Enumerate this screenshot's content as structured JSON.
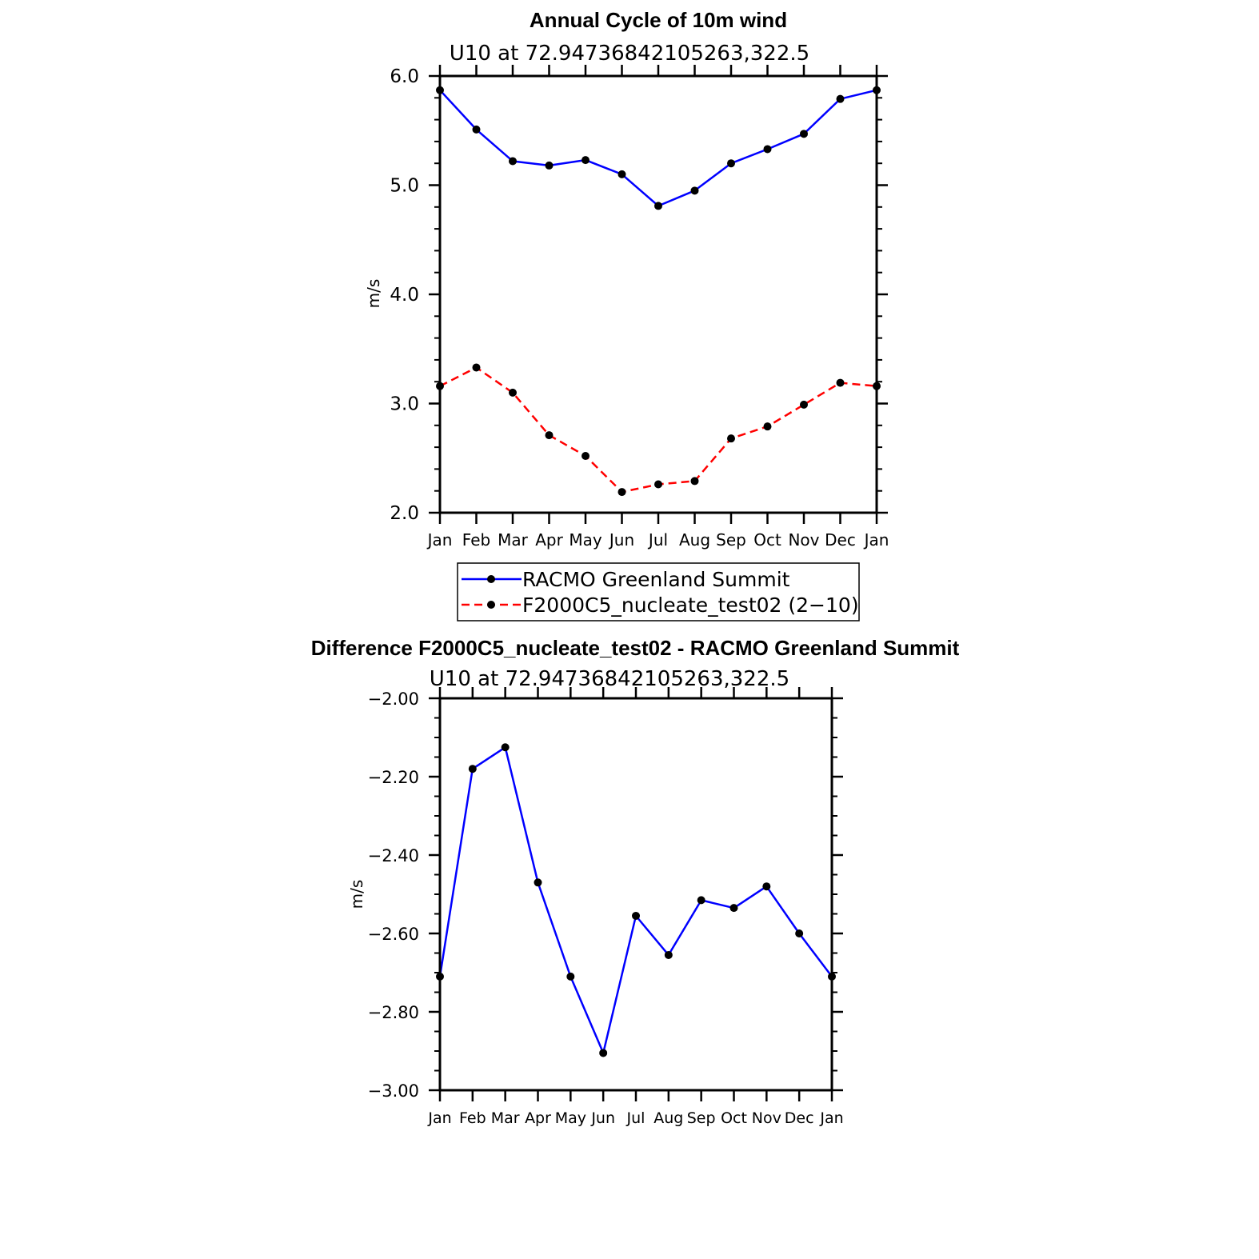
{
  "chart_data": [
    {
      "type": "line",
      "title": "Annual Cycle of 10m wind",
      "subtitle": "U10  at  72.94736842105263,322.5",
      "xlabel": "",
      "ylabel": "m/s",
      "categories": [
        "Jan",
        "Feb",
        "Mar",
        "Apr",
        "May",
        "Jun",
        "Jul",
        "Aug",
        "Sep",
        "Oct",
        "Nov",
        "Dec",
        "Jan"
      ],
      "ylim": [
        2.0,
        6.0
      ],
      "yticks": [
        2.0,
        3.0,
        4.0,
        5.0,
        6.0
      ],
      "ytick_labels": [
        "2.0",
        "3.0",
        "4.0",
        "5.0",
        "6.0"
      ],
      "yminor_step": 0.2,
      "legend": "bottom-center",
      "series": [
        {
          "name": "RACMO Greenland Summit",
          "color": "#0000ff",
          "dash": "solid",
          "values": [
            5.87,
            5.51,
            5.22,
            5.18,
            5.23,
            5.1,
            4.81,
            4.95,
            5.2,
            5.33,
            5.47,
            5.79,
            5.87
          ]
        },
        {
          "name": "F2000C5_nucleate_test02 (2−10)",
          "color": "#ff0000",
          "dash": "dashed",
          "values": [
            3.16,
            3.33,
            3.1,
            2.71,
            2.52,
            2.19,
            2.26,
            2.29,
            2.68,
            2.79,
            2.99,
            3.19,
            3.16
          ]
        }
      ]
    },
    {
      "type": "line",
      "title": "Difference F2000C5_nucleate_test02 - RACMO Greenland Summit",
      "subtitle": "U10  at  72.94736842105263,322.5",
      "xlabel": "",
      "ylabel": "m/s",
      "categories": [
        "Jan",
        "Feb",
        "Mar",
        "Apr",
        "May",
        "Jun",
        "Jul",
        "Aug",
        "Sep",
        "Oct",
        "Nov",
        "Dec",
        "Jan"
      ],
      "ylim": [
        -3.0,
        -2.0
      ],
      "yticks": [
        -3.0,
        -2.8,
        -2.6,
        -2.4,
        -2.2,
        -2.0
      ],
      "ytick_labels": [
        "−3.00",
        "−2.80",
        "−2.60",
        "−2.40",
        "−2.20",
        "−2.00"
      ],
      "yminor_step": 0.05,
      "series": [
        {
          "name": "Difference",
          "color": "#0000ff",
          "dash": "solid",
          "values": [
            -2.71,
            -2.18,
            -2.125,
            -2.47,
            -2.71,
            -2.905,
            -2.555,
            -2.655,
            -2.515,
            -2.535,
            -2.48,
            -2.6,
            -2.71
          ]
        }
      ]
    }
  ]
}
